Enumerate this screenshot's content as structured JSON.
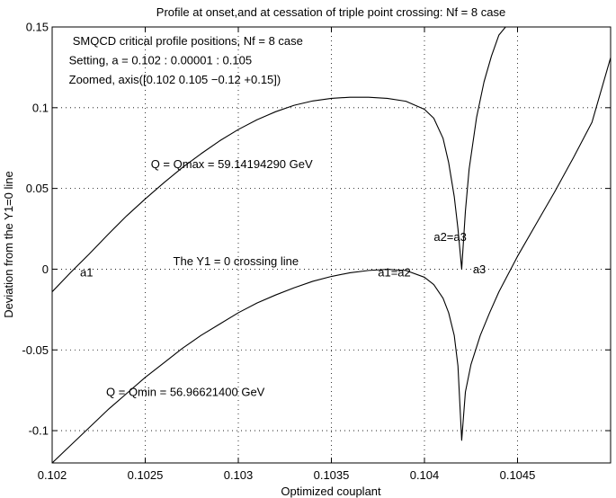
{
  "chart_data": {
    "type": "line",
    "title": "Profile at onset,and at cessation of triple point crossing: Nf = 8 case",
    "xlabel": "Optimized couplant",
    "ylabel": "Deviation from the Y1=0 line",
    "xlim": [
      0.102,
      0.105
    ],
    "ylim": [
      -0.12,
      0.15
    ],
    "xticks": [
      0.102,
      0.1025,
      0.103,
      0.1035,
      0.104,
      0.1045
    ],
    "xtick_labels": [
      "0.102",
      "0.1025",
      "0.103",
      "0.1035",
      "0.104",
      "0.1045"
    ],
    "yticks": [
      -0.1,
      -0.05,
      0,
      0.05,
      0.1,
      0.15
    ],
    "ytick_labels": [
      "-0.1",
      "-0.05",
      "0",
      "0.05",
      "0.1",
      "0.15"
    ],
    "grid": true,
    "series": [
      {
        "x": [
          0.102,
          0.1021,
          0.1022,
          0.1023,
          0.1024,
          0.1025,
          0.1026,
          0.1027,
          0.1028,
          0.1029,
          0.103,
          0.1031,
          0.1032,
          0.1033,
          0.1034,
          0.1035,
          0.1036,
          0.1037,
          0.1038,
          0.1039,
          0.104,
          0.10405,
          0.1041,
          0.10413,
          0.10416,
          0.10418,
          0.1042,
          0.10422,
          0.10424,
          0.10428,
          0.10432,
          0.10436,
          0.1044,
          0.10445
        ],
        "y": [
          -0.014,
          -0.002,
          0.0095,
          0.0215,
          0.033,
          0.0435,
          0.0535,
          0.063,
          0.0715,
          0.0795,
          0.0865,
          0.0925,
          0.0975,
          0.1015,
          0.1042,
          0.1058,
          0.1065,
          0.1065,
          0.1058,
          0.104,
          0.099,
          0.0935,
          0.081,
          0.066,
          0.045,
          0.025,
          0.0,
          0.036,
          0.062,
          0.094,
          0.116,
          0.132,
          0.145,
          0.152
        ]
      },
      {
        "x": [
          0.102,
          0.1021,
          0.1022,
          0.1023,
          0.1024,
          0.1025,
          0.1026,
          0.1027,
          0.1028,
          0.1029,
          0.103,
          0.1031,
          0.1032,
          0.1033,
          0.1034,
          0.1035,
          0.1036,
          0.1037,
          0.1038,
          0.1039,
          0.104,
          0.10405,
          0.1041,
          0.10413,
          0.10416,
          0.10418,
          0.1042,
          0.10422,
          0.10425,
          0.1043,
          0.10435,
          0.1044,
          0.10445,
          0.1045,
          0.1046,
          0.1047,
          0.1048,
          0.1049,
          0.105
        ],
        "y": [
          -0.12,
          -0.109,
          -0.098,
          -0.087,
          -0.077,
          -0.067,
          -0.058,
          -0.049,
          -0.041,
          -0.034,
          -0.027,
          -0.021,
          -0.016,
          -0.0115,
          -0.0075,
          -0.0045,
          -0.0022,
          -0.0008,
          -0.0001,
          -0.0008,
          -0.005,
          -0.0095,
          -0.018,
          -0.027,
          -0.041,
          -0.06,
          -0.106,
          -0.076,
          -0.059,
          -0.041,
          -0.027,
          -0.014,
          -0.003,
          0.008,
          0.028,
          0.048,
          0.069,
          0.091,
          0.131
        ]
      }
    ],
    "annotations": [
      {
        "text": "SMQCD critical profile positions, Nf = 8 case",
        "x": 0.10211,
        "y": 0.139
      },
      {
        "text": "Setting, a = 0.102 : 0.00001 : 0.105",
        "x": 0.10209,
        "y": 0.127
      },
      {
        "text": "Zoomed, axis([0.102 0.105 −0.12 +0.15])",
        "x": 0.10209,
        "y": 0.115
      },
      {
        "text": "Q = Qmax = 59.14194290 GeV",
        "x": 0.10253,
        "y": 0.0625
      },
      {
        "text": "The Y1 = 0 crossing line",
        "x": 0.10265,
        "y": 0.0025
      },
      {
        "text": "Q = Qmin = 56.96621400 GeV",
        "x": 0.10229,
        "y": -0.0785
      },
      {
        "text": "a1",
        "x": 0.10215,
        "y": -0.0045
      },
      {
        "text": "a1=a2",
        "x": 0.10375,
        "y": -0.0045
      },
      {
        "text": "a2=a3",
        "x": 0.10405,
        "y": 0.0175
      },
      {
        "text": "a3",
        "x": 0.10426,
        "y": -0.0025
      }
    ]
  }
}
